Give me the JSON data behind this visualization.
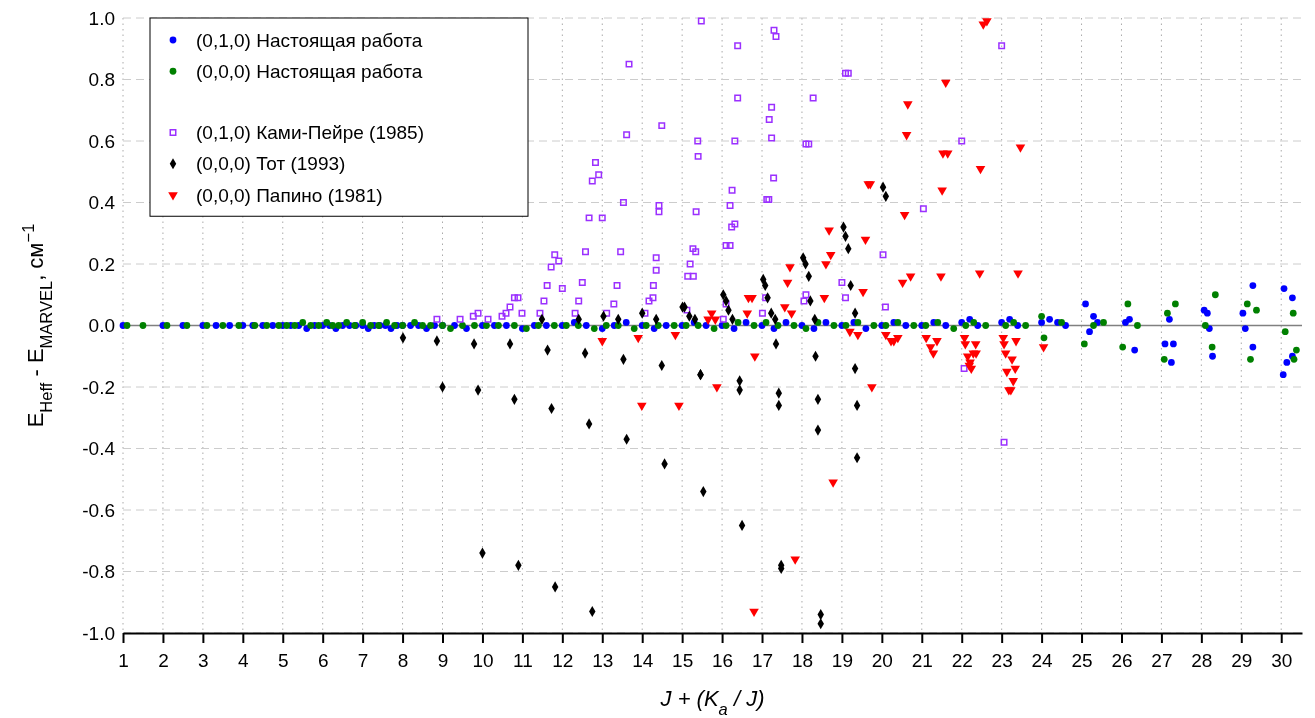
{
  "chart_data": {
    "type": "scatter",
    "xlabel": "J + (K$_{a}$ / J)",
    "ylabel": "E$_{Heff}$ - E$_{MARVEL}$, см$^{−1}$",
    "xlim": [
      1,
      30.52
    ],
    "ylim": [
      -1,
      1
    ],
    "xticks": [
      1,
      2,
      3,
      4,
      5,
      6,
      7,
      8,
      9,
      10,
      11,
      12,
      13,
      14,
      15,
      16,
      17,
      18,
      19,
      20,
      21,
      22,
      23,
      24,
      25,
      26,
      27,
      28,
      29,
      30
    ],
    "yticks": [
      {
        "value": -1,
        "label": "-1.0"
      },
      {
        "value": -0.8,
        "label": "-0.8"
      },
      {
        "value": -0.6,
        "label": "-0.6"
      },
      {
        "value": -0.4,
        "label": "-0.4"
      },
      {
        "value": -0.2,
        "label": "-0.2"
      },
      {
        "value": 0,
        "label": "0.0"
      },
      {
        "value": 0.2,
        "label": "0.2"
      },
      {
        "value": 0.4,
        "label": "0.4"
      },
      {
        "value": 0.6,
        "label": "0.6"
      },
      {
        "value": 0.8,
        "label": "0.8"
      },
      {
        "value": 1,
        "label": "1.0"
      }
    ],
    "grid": true,
    "legend": "top left",
    "ref_lines": [
      {
        "axis": "y",
        "value": 0,
        "color": "#808080"
      }
    ],
    "series": [
      {
        "name": "(0,1,0) Настоящая работа",
        "color": "#0000ff",
        "marker": "circle",
        "x": [
          1,
          2,
          2.5,
          3,
          3.33,
          3.67,
          4,
          4.25,
          4.5,
          4.75,
          5,
          5.2,
          5.4,
          5.6,
          5.8,
          6,
          6.17,
          6.33,
          6.5,
          6.67,
          6.83,
          7,
          7.14,
          7.29,
          7.43,
          7.57,
          7.71,
          7.86,
          8,
          8.2,
          8.4,
          8.6,
          8.8,
          9,
          9.3,
          9.6,
          10,
          10.3,
          10.6,
          11,
          11.3,
          11.6,
          12,
          12.3,
          12.6,
          13,
          13.3,
          13.6,
          14,
          14.3,
          14.6,
          15,
          15.3,
          15.6,
          16,
          16.3,
          16.6,
          17,
          17.3,
          17.6,
          18,
          18.3,
          18.6,
          19,
          19.3,
          19.6,
          20,
          20.3,
          20.6,
          21,
          21.3,
          21.6,
          22,
          22.2,
          22.4,
          23,
          23.2,
          23.4,
          24,
          24.2,
          24.4,
          24.6,
          25.1,
          25.2,
          25.3,
          25.4,
          26.1,
          26.33,
          26.2,
          27.09,
          27.25,
          27.3,
          27.2,
          28.07,
          28.15,
          28.28,
          28.2,
          29.29,
          29.04,
          29.29,
          29.1,
          30.07,
          30.28,
          30.05,
          30.14,
          30.28
        ],
        "values": [
          0,
          0,
          0,
          0,
          0,
          0,
          0,
          0,
          0,
          0,
          0,
          0,
          0,
          -0.01,
          0,
          0,
          0,
          -0.01,
          0,
          0,
          0,
          0,
          -0.01,
          0,
          0,
          0,
          -0.01,
          0,
          0,
          0,
          0,
          -0.01,
          0,
          0,
          0,
          -0.01,
          0,
          0,
          0,
          -0.01,
          0,
          0,
          0,
          0.01,
          0,
          -0.01,
          0,
          0.01,
          0,
          -0.01,
          0,
          0,
          0.01,
          0,
          0,
          -0.01,
          0.01,
          0,
          -0.01,
          0.01,
          0,
          -0.01,
          0.01,
          0,
          0.01,
          -0.01,
          0,
          0.01,
          0,
          0,
          0.01,
          0,
          0.01,
          0.02,
          0,
          0.01,
          0.02,
          0,
          0.01,
          0.02,
          0.01,
          0,
          0.07,
          -0.02,
          0.03,
          0.01,
          0.01,
          -0.08,
          0.02,
          -0.06,
          -0.12,
          -0.06,
          0.02,
          0.05,
          0.04,
          -0.1,
          -0.01,
          0.13,
          0.04,
          -0.07,
          -0.01,
          0.12,
          0.09,
          -0.16,
          -0.12,
          -0.1
        ]
      },
      {
        "name": "(0,0,0) Настоящая работа",
        "color": "#008000",
        "marker": "circle",
        "x": [
          1.1,
          1.5,
          2.1,
          2.6,
          3.1,
          3.5,
          3.9,
          4.3,
          4.6,
          4.9,
          5.1,
          5.3,
          5.5,
          5.7,
          5.9,
          6.1,
          6.25,
          6.4,
          6.6,
          6.8,
          7,
          7.2,
          7.4,
          7.6,
          7.8,
          8,
          8.3,
          8.5,
          8.7,
          9,
          9.2,
          9.5,
          9.8,
          10.1,
          10.4,
          10.8,
          11.1,
          11.4,
          11.8,
          12.1,
          12.4,
          12.8,
          13.1,
          13.4,
          13.8,
          14.1,
          14.4,
          14.8,
          15.1,
          15.4,
          15.8,
          16.1,
          16.4,
          16.8,
          17.1,
          17.4,
          17.8,
          18.1,
          18.4,
          18.8,
          19.1,
          19.4,
          19.8,
          20.1,
          20.4,
          20.8,
          21.1,
          21.4,
          21.8,
          22.1,
          22.3,
          22.6,
          23.1,
          23.3,
          23.6,
          24,
          24.06,
          24.5,
          25.07,
          25.55,
          25.3,
          26.16,
          26.03,
          26.4,
          27.35,
          27.07,
          27.15,
          28.35,
          28.27,
          28.1,
          29.15,
          29.38,
          29.23,
          30.3,
          30.38,
          30.32,
          30.1
        ],
        "values": [
          0,
          0,
          0,
          0,
          0,
          0,
          0,
          0,
          0,
          0,
          0,
          0,
          0.01,
          0,
          0,
          0.01,
          0,
          0,
          0.01,
          0,
          0.01,
          0,
          0,
          0.01,
          0,
          0,
          0.01,
          0,
          0,
          0,
          -0.01,
          0,
          0,
          0,
          0,
          0,
          -0.01,
          0,
          0,
          0,
          0,
          -0.01,
          0,
          0,
          -0.01,
          0,
          0,
          0,
          0,
          0,
          -0.01,
          0,
          0.01,
          0,
          0.01,
          0,
          0,
          -0.01,
          0.01,
          0,
          0,
          0.01,
          0,
          0,
          0.01,
          0,
          0,
          0.01,
          -0.01,
          0,
          0.01,
          0,
          0,
          0.01,
          0,
          0.03,
          -0.04,
          0.01,
          -0.06,
          0.01,
          0,
          0.07,
          -0.07,
          0,
          0.07,
          -0.11,
          0.04,
          0.1,
          -0.07,
          0,
          0.07,
          0.05,
          -0.11,
          0.04,
          -0.08,
          -0.11,
          -0.02
        ]
      },
      {
        "name": "(0,1,0) Ками-Пейре (1985)",
        "color": "#9b30ff",
        "marker": "square",
        "x": [
          8.86,
          9.44,
          9.77,
          9.89,
          10.14,
          10.49,
          10.59,
          10.69,
          10.8,
          10.89,
          10.99,
          11.44,
          11.54,
          11.62,
          11.72,
          11.81,
          11.91,
          12.0,
          12.32,
          12.41,
          12.5,
          12.58,
          12.67,
          12.75,
          12.83,
          12.91,
          13.0,
          13.11,
          13.29,
          13.37,
          13.46,
          13.53,
          13.61,
          13.67,
          14.07,
          14.17,
          14.27,
          14.28,
          14.35,
          14.35,
          14.42,
          14.42,
          14.49,
          15.12,
          15.14,
          15.2,
          15.27,
          15.28,
          15.34,
          15.35,
          15.39,
          15.4,
          15.48,
          16.03,
          16.1,
          16.1,
          16.2,
          16.2,
          16.24,
          16.25,
          16.32,
          16.32,
          16.39,
          16.39,
          17.01,
          17.09,
          17.12,
          17.17,
          17.24,
          17.18,
          17.24,
          17.29,
          17.3,
          17.35,
          18.05,
          18.1,
          18.1,
          18.17,
          18.28,
          19.0,
          19.09,
          19.09,
          19.16,
          20.03,
          20.09,
          21.04,
          22.0,
          22.06,
          23.0,
          23.06
        ],
        "values": [
          0.02,
          0.02,
          0.03,
          0.04,
          0.02,
          0.03,
          0.04,
          0.06,
          0.09,
          0.09,
          0.04,
          0.04,
          0.08,
          0.13,
          0.19,
          0.23,
          0.21,
          0.12,
          0.04,
          0.08,
          0.14,
          0.24,
          0.35,
          0.47,
          0.53,
          0.49,
          0.35,
          0.04,
          0.07,
          0.13,
          0.24,
          0.4,
          0.62,
          0.85,
          0.04,
          0.08,
          0.09,
          0.13,
          0.18,
          0.22,
          0.37,
          0.39,
          0.65,
          0.05,
          0.16,
          0.2,
          0.25,
          0.16,
          0.24,
          0.37,
          0.6,
          0.55,
          0.99,
          0.02,
          0.07,
          0.26,
          0.26,
          0.39,
          0.32,
          0.44,
          0.33,
          0.6,
          0.91,
          0.74,
          0.04,
          0.09,
          0.41,
          0.41,
          0.71,
          0.67,
          0.61,
          0.48,
          0.96,
          0.94,
          0.08,
          0.1,
          0.59,
          0.59,
          0.74,
          0.14,
          0.09,
          0.82,
          0.82,
          0.23,
          0.06,
          0.38,
          0.6,
          -0.14,
          0.91,
          -0.38
        ]
      },
      {
        "name": "(0,0,0) Тот (1993)",
        "color": "#000000",
        "marker": "diamond",
        "x": [
          8.01,
          8.86,
          9.0,
          9.79,
          9.89,
          10.0,
          10.69,
          10.8,
          10.9,
          11.63,
          11.73,
          11.82,
          12.57,
          12.67,
          12.75,
          13.53,
          13.61,
          14.49,
          14.56,
          15.46,
          15.46,
          15.53,
          16.44,
          16.44,
          16.5,
          17.35,
          17.42,
          17.42,
          17.48,
          17.48,
          18.34,
          18.4,
          18.4,
          18.47,
          18.47,
          19.33,
          19.38,
          19.38,
          11.49,
          12.41,
          13.03,
          13.4,
          14.0,
          14.35,
          15.01,
          15.06,
          15.18,
          15.32,
          16.03,
          16.1,
          16.16,
          16.26,
          17.03,
          17.08,
          17.14,
          17.23,
          17.33,
          18.03,
          18.09,
          18.17,
          18.21,
          18.32,
          19.04,
          19.09,
          19.16,
          19.22,
          19.33,
          20.03,
          20.1
        ],
        "values": [
          -0.04,
          -0.05,
          -0.2,
          -0.06,
          -0.21,
          -0.74,
          -0.06,
          -0.24,
          -0.78,
          -0.08,
          -0.27,
          -0.85,
          -0.09,
          -0.32,
          -0.93,
          -0.11,
          -0.37,
          -0.13,
          -0.45,
          -0.16,
          -0.16,
          -0.54,
          -0.18,
          -0.21,
          -0.65,
          -0.06,
          -0.22,
          -0.26,
          -0.78,
          -0.79,
          -0.1,
          -0.24,
          -0.34,
          -0.94,
          -0.97,
          -0.14,
          -0.26,
          -0.43,
          0.02,
          0.02,
          0.03,
          0.02,
          0.04,
          0.02,
          0.06,
          0.06,
          0.03,
          0.02,
          0.1,
          0.08,
          0.05,
          0.02,
          0.15,
          0.13,
          0.09,
          0.04,
          0.02,
          0.22,
          0.2,
          0.16,
          0.08,
          0.02,
          0.32,
          0.29,
          0.25,
          0.13,
          0.04,
          0.45,
          0.42
        ]
      },
      {
        "name": "(0,0,0) Папино (1981)",
        "color": "#ff0000",
        "marker": "triangle",
        "x": [
          13.0,
          13.9,
          13.99,
          14.83,
          14.92,
          15.65,
          15.74,
          15.83,
          15.87,
          16.63,
          16.66,
          16.75,
          16.82,
          16.8,
          17.57,
          17.64,
          17.7,
          17.74,
          17.83,
          18.56,
          18.6,
          18.68,
          18.72,
          18.78,
          19.2,
          19.4,
          19.53,
          19.59,
          19.66,
          19.71,
          19.75,
          20.1,
          20.23,
          20.3,
          20.4,
          20.52,
          20.57,
          20.62,
          20.65,
          20.72,
          21.11,
          21.22,
          21.29,
          21.38,
          21.48,
          21.51,
          21.53,
          21.6,
          21.65,
          22.07,
          22.09,
          22.15,
          22.19,
          22.21,
          22.24,
          22.29,
          22.35,
          22.36,
          22.45,
          22.47,
          22.54,
          22.63,
          23.04,
          23.06,
          23.1,
          23.13,
          23.18,
          23.23,
          23.26,
          23.29,
          23.34,
          23.36,
          23.41,
          23.47,
          24.05
        ],
        "values": [
          -0.05,
          -0.04,
          -0.26,
          -0.03,
          -0.26,
          0.02,
          0.04,
          0.02,
          -0.2,
          0.04,
          0.09,
          0.09,
          -0.1,
          -0.93,
          0.06,
          0.14,
          0.19,
          0.04,
          -0.76,
          0.09,
          0.2,
          0.31,
          0.23,
          -0.51,
          -0.02,
          -0.03,
          0.11,
          0.28,
          0.46,
          0.46,
          -0.2,
          -0.03,
          -0.05,
          -0.05,
          -0.04,
          0.14,
          0.36,
          0.62,
          0.72,
          0.16,
          -0.04,
          -0.07,
          -0.09,
          -0.05,
          0.16,
          0.44,
          0.56,
          0.79,
          0.56,
          -0.04,
          -0.06,
          -0.1,
          -0.13,
          -0.12,
          -0.14,
          -0.09,
          -0.06,
          -0.09,
          0.17,
          0.51,
          0.98,
          0.99,
          -0.04,
          -0.06,
          -0.09,
          -0.15,
          -0.21,
          -0.21,
          -0.11,
          -0.18,
          -0.14,
          -0.05,
          0.17,
          0.58,
          -0.07
        ]
      }
    ]
  }
}
